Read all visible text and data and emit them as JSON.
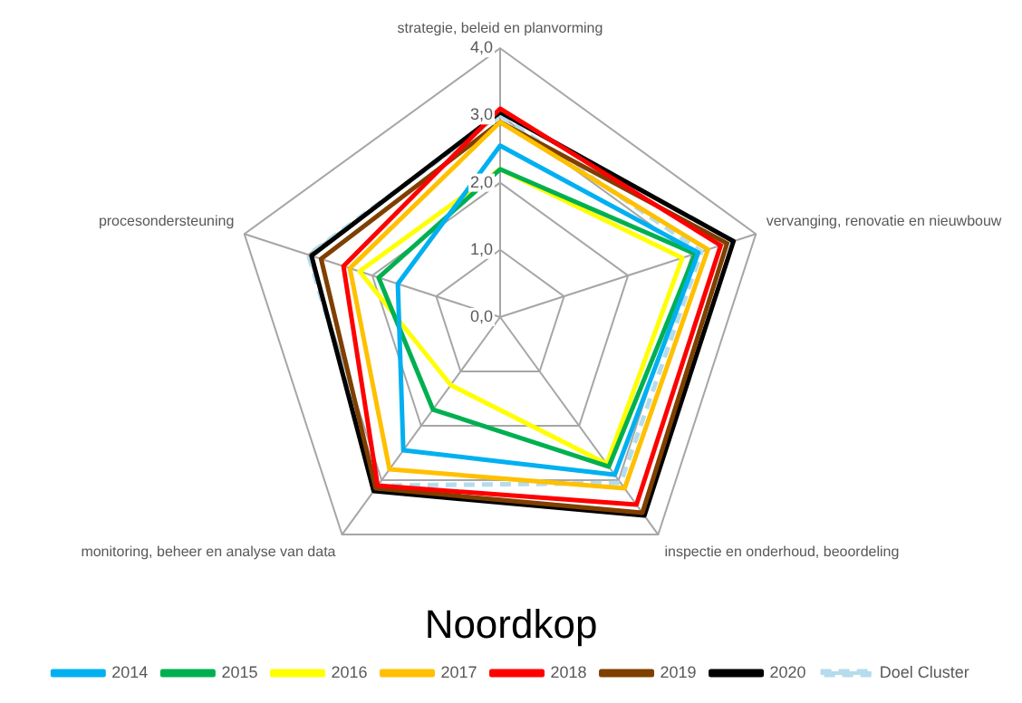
{
  "chart_data": {
    "type": "radar",
    "title": "Noordkop",
    "categories": [
      "strategie, beleid en planvorming",
      "vervanging, renovatie en nieuwbouw",
      "inspectie en onderhoud, beoordeling",
      "monitoring, beheer en analyse van data",
      "procesondersteuning"
    ],
    "series": [
      {
        "name": "2014",
        "color": "#00b0f0",
        "values": [
          2.55,
          3.1,
          2.9,
          2.45,
          1.6
        ]
      },
      {
        "name": "2015",
        "color": "#00b050",
        "values": [
          2.2,
          3.05,
          2.75,
          1.7,
          1.9
        ]
      },
      {
        "name": "2016",
        "color": "#ffff00",
        "values": [
          2.2,
          2.85,
          2.7,
          1.25,
          2.2
        ]
      },
      {
        "name": "2017",
        "color": "#ffc000",
        "values": [
          2.9,
          3.25,
          3.15,
          2.8,
          2.35
        ]
      },
      {
        "name": "2018",
        "color": "#ff0000",
        "values": [
          3.1,
          3.45,
          3.45,
          3.1,
          2.45
        ]
      },
      {
        "name": "2019",
        "color": "#7f3f00",
        "values": [
          2.9,
          3.55,
          3.6,
          3.15,
          2.8
        ]
      },
      {
        "name": "2020",
        "color": "#000000",
        "values": [
          3.05,
          3.65,
          3.65,
          3.2,
          2.95
        ]
      },
      {
        "name": "Doel Cluster",
        "color": "#b4dcec",
        "line_style": "dashed",
        "values": [
          3.0,
          3.15,
          3.05,
          3.1,
          3.0
        ]
      }
    ],
    "ylim": [
      0,
      4
    ],
    "yticks": [
      {
        "value": 0,
        "label": "0,0"
      },
      {
        "value": 1,
        "label": "1,0"
      },
      {
        "value": 2,
        "label": "2,0"
      },
      {
        "value": 3,
        "label": "3,0"
      },
      {
        "value": 4,
        "label": "4,0"
      }
    ],
    "grid": true,
    "legend": "bottom",
    "marker": "none"
  }
}
